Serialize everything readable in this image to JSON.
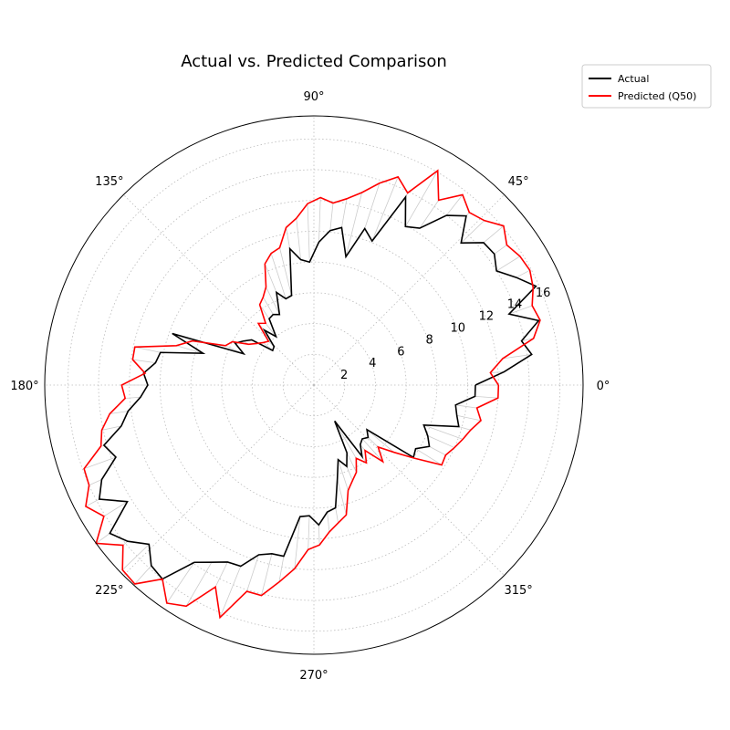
{
  "chart_data": {
    "type": "line",
    "projection": "polar",
    "title": "Actual vs. Predicted Comparison",
    "angle_unit": "degrees",
    "angle_ticks": [
      "0°",
      "45°",
      "90°",
      "135°",
      "180°",
      "225°",
      "270°",
      "315°"
    ],
    "radial_ticks": [
      "2",
      "4",
      "6",
      "8",
      "10",
      "12",
      "14",
      "16"
    ],
    "rlim": [
      0,
      17.5
    ],
    "grid": true,
    "legend_placement": "top-right, outside plot",
    "residual_connectors": true,
    "colors": {
      "actual": "#000000",
      "predicted": "#ff0000",
      "connector": "#cccccc",
      "grid": "#bbbbbb"
    },
    "theta": [
      0,
      4,
      8,
      12,
      16,
      20,
      24,
      28,
      32,
      36,
      40,
      44,
      48,
      52,
      56,
      60,
      64,
      68,
      72,
      76,
      80,
      84,
      88,
      92,
      96,
      100,
      104,
      108,
      112,
      116,
      120,
      124,
      128,
      132,
      136,
      140,
      144,
      148,
      152,
      156,
      160,
      164,
      168,
      172,
      176,
      180,
      184,
      188,
      192,
      196,
      200,
      204,
      208,
      212,
      216,
      220,
      224,
      228,
      232,
      236,
      240,
      244,
      248,
      252,
      256,
      260,
      264,
      268,
      272,
      276,
      280,
      284,
      288,
      292,
      296,
      300,
      304,
      308,
      312,
      316,
      320,
      324,
      328,
      332,
      336,
      340,
      344,
      348,
      352,
      356
    ],
    "series": [
      {
        "name": "Actual",
        "color": "#000000",
        "values": [
          10.5,
          12.4,
          14.3,
          13.8,
          15.2,
          13.5,
          15.8,
          14.9,
          14.0,
          14.5,
          14.4,
          13.3,
          14.8,
          14.0,
          12.3,
          11.9,
          13.6,
          10.1,
          10.7,
          8.6,
          10.4,
          10.1,
          9.3,
          8.0,
          8.2,
          9.0,
          6.0,
          5.9,
          6.5,
          5.1,
          5.3,
          5.2,
          4.0,
          4.8,
          3.6,
          3.5,
          5.0,
          5.4,
          5.8,
          5.0,
          9.8,
          7.5,
          10.2,
          10.4,
          11.1,
          10.8,
          11.3,
          12.2,
          12.8,
          14.2,
          13.7,
          15.1,
          15.8,
          14.3,
          16.4,
          15.8,
          14.9,
          15.8,
          16.0,
          13.9,
          13.3,
          12.8,
          12.7,
          11.6,
          11.3,
          11.3,
          8.6,
          8.5,
          9.1,
          8.3,
          8.1,
          6.3,
          5.1,
          5.7,
          4.9,
          2.7,
          5.6,
          4.9,
          4.7,
          4.9,
          4.5,
          8.0,
          7.8,
          8.5,
          8.1,
          7.6,
          9.8,
          9.5,
          9.3,
          10.5
        ]
      },
      {
        "name": "Predicted (Q50)",
        "color": "#ff0000",
        "values": [
          12.0,
          11.5,
          12.4,
          14.6,
          15.3,
          15.1,
          15.6,
          15.9,
          15.8,
          15.5,
          16.1,
          15.4,
          15.1,
          15.7,
          14.5,
          16.1,
          13.9,
          14.6,
          13.8,
          12.9,
          12.3,
          11.9,
          12.2,
          11.8,
          10.9,
          10.4,
          9.2,
          9.0,
          8.5,
          7.1,
          6.6,
          6.3,
          5.1,
          5.4,
          4.1,
          4.3,
          4.6,
          5.0,
          6.0,
          6.3,
          8.4,
          9.3,
          11.9,
          11.9,
          11.0,
          12.5,
          12.3,
          13.4,
          14.1,
          14.4,
          15.9,
          16.0,
          16.8,
          16.1,
          17.5,
          16.2,
          17.3,
          17.4,
          16.0,
          17.1,
          16.6,
          14.6,
          16.3,
          14.1,
          14.1,
          13.0,
          12.0,
          10.7,
          10.4,
          9.6,
          9.1,
          8.7,
          7.2,
          6.7,
          6.3,
          5.5,
          6.1,
          5.4,
          6.7,
          5.8,
          6.8,
          8.1,
          9.8,
          9.7,
          10.0,
          10.3,
          10.6,
          11.1,
          10.7,
          12.0
        ]
      }
    ]
  },
  "legend": {
    "items": [
      {
        "label": "Actual",
        "color": "#000000"
      },
      {
        "label": "Predicted (Q50)",
        "color": "#ff0000"
      }
    ]
  }
}
